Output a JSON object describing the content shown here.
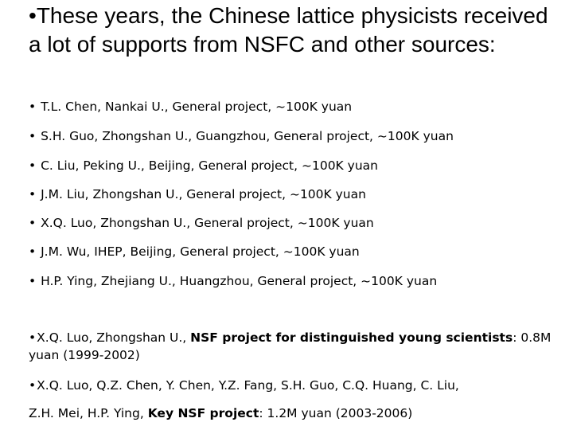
{
  "heading": {
    "bullet": "•",
    "text": "These years, the Chinese lattice physicists received a lot of supports from NSFC and other sources:"
  },
  "general_projects": [
    "T.L. Chen, Nankai U., General project, ~100K yuan",
    "S.H. Guo, Zhongshan U., Guangzhou, General project, ~100K yuan",
    "C. Liu, Peking U., Beijing, General project, ~100K yuan",
    "J.M. Liu, Zhongshan U., General project, ~100K yuan",
    "X.Q. Luo, Zhongshan U., General project, ~100K yuan",
    "J.M. Wu, IHEP, Beijing, General project, ~100K yuan",
    "H.P. Ying, Zhejiang U., Huangzhou, General project, ~100K yuan"
  ],
  "young_scientists": {
    "prefix": "X.Q. Luo, Zhongshan U., ",
    "bold": "NSF project for distinguished young scientists",
    "suffix": ": 0.8M yuan (1999-2002)"
  },
  "key_project": {
    "line1": "X.Q. Luo, Q.Z. Chen, Y. Chen, Y.Z. Fang, S.H. Guo, C.Q. Huang, C. Liu,",
    "line2_prefix": "Z.H. Mei, H.P. Ying, ",
    "bold": "Key NSF project",
    "suffix": ": 1.2M yuan (2003-2006)"
  },
  "bullet_char": "•"
}
